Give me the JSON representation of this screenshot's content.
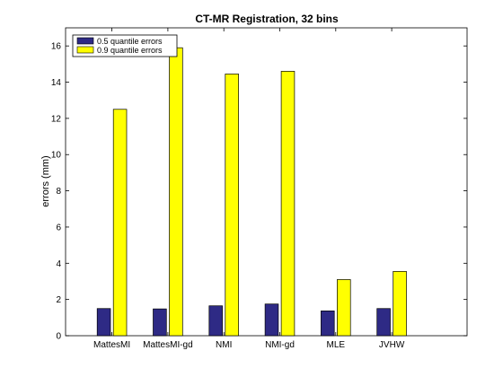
{
  "chart_data": {
    "type": "bar",
    "title": "CT-MR Registration, 32 bins",
    "xlabel": "",
    "ylabel": "errors (mm)",
    "ylim": [
      0,
      17
    ],
    "yticks": [
      0,
      2,
      4,
      6,
      8,
      10,
      12,
      14,
      16
    ],
    "categories": [
      "MattesMI",
      "MattesMI-gd",
      "NMI",
      "NMI-gd",
      "MLE",
      "JVHW"
    ],
    "series": [
      {
        "name": "0.5 quantile errors",
        "color": "#2e2a85",
        "values": [
          1.5,
          1.48,
          1.65,
          1.75,
          1.37,
          1.5
        ]
      },
      {
        "name": "0.9 quantile errors",
        "color": "#ffff00",
        "values": [
          12.5,
          15.9,
          14.45,
          14.6,
          3.1,
          3.55
        ]
      }
    ],
    "legend": "top-left",
    "grid": false
  }
}
